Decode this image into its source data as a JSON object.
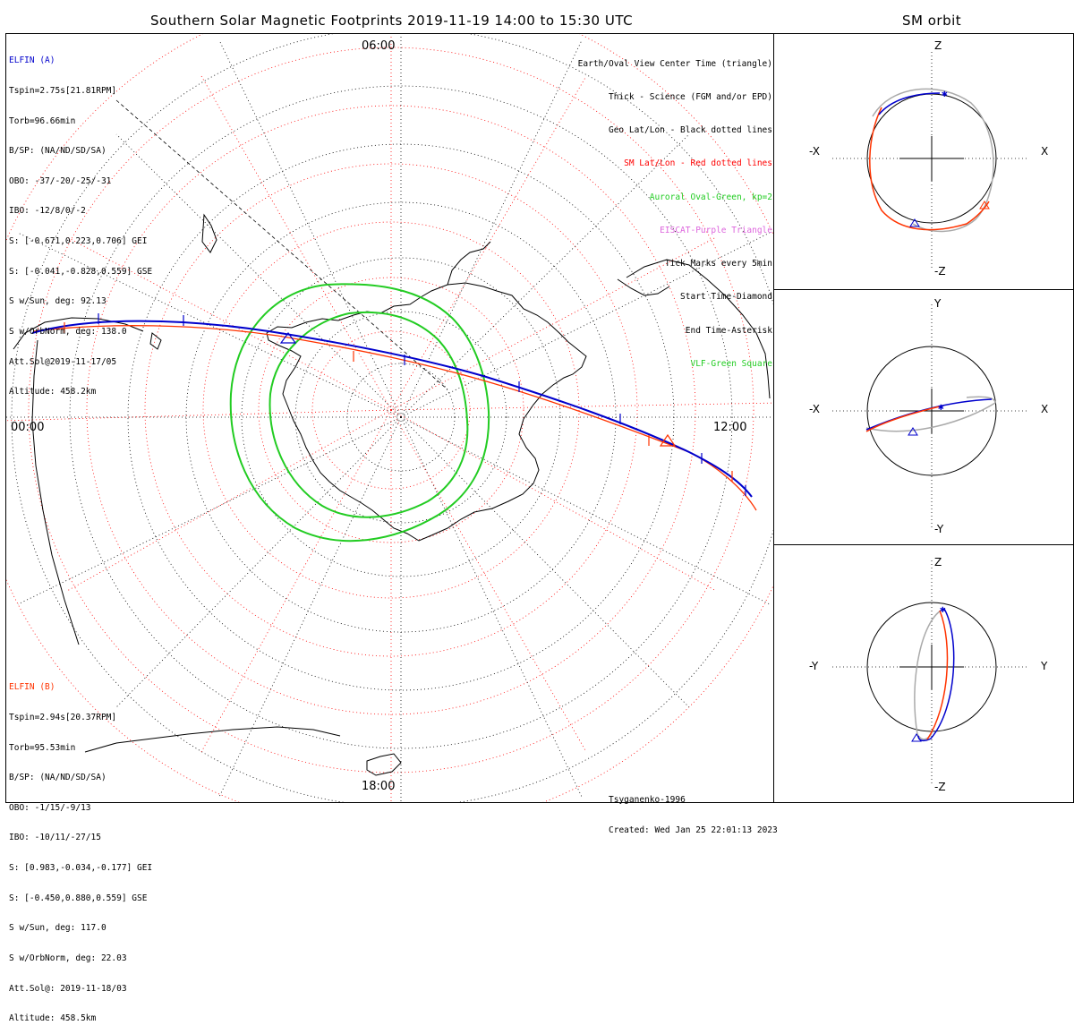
{
  "main_title": "Southern Solar Magnetic Footprints 2019-11-19 14:00 to 15:30 UTC",
  "side_title": "SM orbit",
  "elfin_a": {
    "title": "ELFIN (A)",
    "lines": [
      "Tspin=2.75s[21.81RPM]",
      "Torb=96.66min",
      "B/SP: (NA/ND/SD/SA)",
      "OBO: -37/-20/-25/-31",
      "IBO: -12/8/0/-2",
      "S: [-0.671,0.223,0.706] GEI",
      "S: [-0.041,-0.828,0.559] GSE",
      "S w/Sun, deg: 92.13",
      "S w/OrbNorm, deg: 138.0",
      "Att.Sol@2019-11-17/05",
      "Altitude: 458.2km"
    ],
    "color": "#0000cc"
  },
  "elfin_b": {
    "title": "ELFIN (B)",
    "lines": [
      "Tspin=2.94s[20.37RPM]",
      "Torb=95.53min",
      "B/SP: (NA/ND/SD/SA)",
      "OBO: -1/15/-9/13",
      "IBO: -10/11/-27/15",
      "S: [0.983,-0.034,-0.177] GEI",
      "S: [-0.450,0.880,0.559] GSE",
      "S w/Sun, deg: 117.0",
      "S w/OrbNorm, deg: 22.03",
      "Att.Sol@: 2019-11-18/03",
      "Altitude: 458.5km"
    ],
    "color": "#ff3300"
  },
  "legend": [
    {
      "text": "Earth/Oval View Center Time (triangle)",
      "color": "#000000"
    },
    {
      "text": "Thick - Science (FGM and/or EPD)",
      "color": "#000000"
    },
    {
      "text": "Geo Lat/Lon - Black dotted lines",
      "color": "#000000"
    },
    {
      "text": "SM Lat/Lon - Red dotted lines",
      "color": "#ff0000"
    },
    {
      "text": "Auroral Oval-Green, kp=2",
      "color": "#22cc22"
    },
    {
      "text": "EISCAT-Purple Triangle",
      "color": "#dd66dd"
    },
    {
      "text": "Tick Marks every 5min",
      "color": "#000000"
    },
    {
      "text": "Start Time-Diamond",
      "color": "#000000"
    },
    {
      "text": "End Time-Asterisk",
      "color": "#000000"
    },
    {
      "text": "VLF-Green Square",
      "color": "#22cc22"
    }
  ],
  "mlt_labels": {
    "top": "06:00",
    "left": "00:00",
    "right": "12:00",
    "bottom": "18:00"
  },
  "footer": {
    "model": "Tsyganenko-1996",
    "created": "Created: Wed Jan 25 22:01:13 2023"
  },
  "orbit_panels": [
    {
      "top": "Z",
      "bottom": "-Z",
      "left": "-X",
      "right": "X"
    },
    {
      "top": "Y",
      "bottom": "-Y",
      "left": "-X",
      "right": "X"
    },
    {
      "top": "Z",
      "bottom": "-Z",
      "left": "-Y",
      "right": "Y"
    }
  ]
}
